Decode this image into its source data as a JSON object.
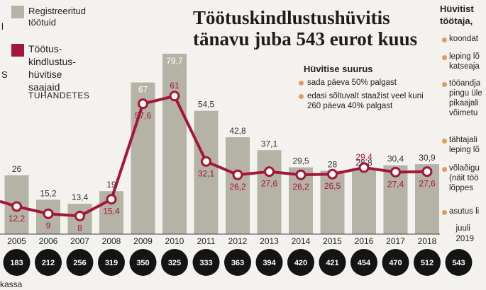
{
  "title": "Töötuskindlustushüvitis tänavu juba 543 eurot kuus",
  "legend": {
    "registered_label": "Registreeritud töötuid",
    "recipients_label": "Töötus-kindlustus-hüvitise saajaid",
    "units": "TUHANDETES",
    "colors": {
      "bars": "#b5b3a6",
      "line": "#a5153a",
      "circles": "#141414"
    }
  },
  "left_edge": {
    "l": "l",
    "s": "S"
  },
  "benefit": {
    "heading": "Hüvitise suurus",
    "items": [
      "sada päeva 50% palgast",
      "edasi sõltuvalt staažist veel kuni 260 päeva 40% palgast"
    ]
  },
  "right_panel": {
    "heading": "Hüvitist töötaja,",
    "items": [
      "koondat",
      "leping lõ katseaja",
      "tööandja pingu üle pikaajali võimetu",
      "tähtajali leping lõ",
      "võlaõigu (näit töö lõppes",
      "asutus li"
    ]
  },
  "footer": {
    "kassa": "kassa"
  },
  "chart_data": {
    "type": "bar",
    "categories": [
      "2005",
      "2006",
      "2007",
      "2008",
      "2009",
      "2010",
      "2011",
      "2012",
      "2013",
      "2014",
      "2015",
      "2016",
      "2017",
      "2018",
      "juuli 2019"
    ],
    "series": [
      {
        "name": "Registreeritud töötuid",
        "type": "bar",
        "values": [
          26,
          15.2,
          13.4,
          19,
          67,
          79.7,
          54.5,
          42.8,
          37.1,
          29.5,
          28,
          28.8,
          30.4,
          30.9,
          null
        ]
      },
      {
        "name": "Töötus-kindlustus-hüvitise saajaid",
        "type": "line",
        "values": [
          12.2,
          9,
          8,
          15.4,
          57.6,
          61,
          32.1,
          26.2,
          27.6,
          26.2,
          26.5,
          29.4,
          27.4,
          27.6,
          null
        ]
      }
    ],
    "bar_labels": [
      "26",
      "15,2",
      "13,4",
      "19",
      "67",
      "79,7",
      "54,5",
      "42,8",
      "37,1",
      "29,5",
      "28",
      "28,8",
      "30,4",
      "30,9",
      ""
    ],
    "line_labels": [
      "12,2",
      "9",
      "8",
      "15,4",
      "57,6",
      "61",
      "32,1",
      "26,2",
      "27,6",
      "26,2",
      "26,5",
      "29,4",
      "27,4",
      "27,6",
      ""
    ],
    "benefit_eur": [
      "183",
      "212",
      "256",
      "319",
      "350",
      "325",
      "333",
      "363",
      "394",
      "420",
      "421",
      "454",
      "470",
      "512",
      "543"
    ],
    "ylim": [
      0,
      80
    ],
    "units": "TUHANDETES"
  }
}
